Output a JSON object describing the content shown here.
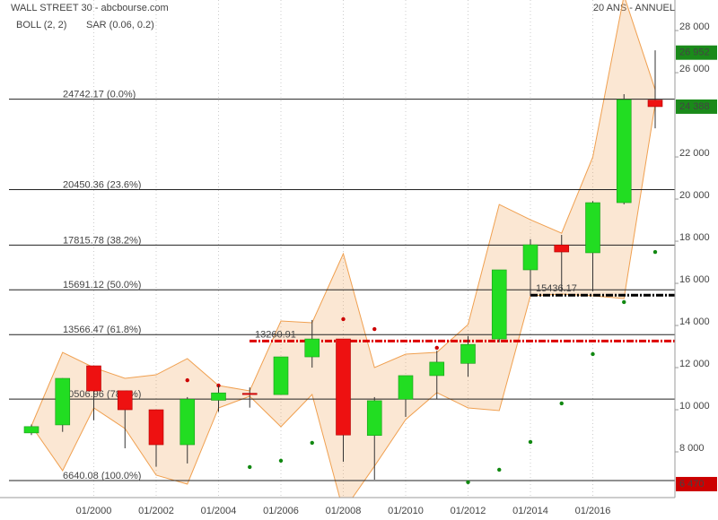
{
  "chart_data": {
    "type": "candlestick",
    "title": "WALL STREET 30 - abcbourse.com",
    "subtitle": "20 ANS - ANNUEL",
    "categories": [
      null,
      null,
      "01/2000",
      null,
      "01/2002",
      null,
      "01/2004",
      null,
      "01/2006",
      null,
      "01/2008",
      null,
      "01/2010",
      null,
      "01/2012",
      null,
      "01/2014",
      null,
      "01/2016",
      null,
      null
    ],
    "open": [
      8900,
      9280,
      12085,
      10900,
      10000,
      8340,
      10450,
      10780,
      10720,
      12510,
      13360,
      8780,
      10500,
      11620,
      12200,
      13360,
      16640,
      17820,
      17450,
      19830,
      24700
    ],
    "high": [
      9300,
      11500,
      12100,
      10900,
      10000,
      10600,
      11150,
      11060,
      12510,
      14260,
      13360,
      10600,
      11620,
      12800,
      13500,
      16640,
      18100,
      18300,
      19900,
      24980,
      27060
    ],
    "low": [
      8800,
      8950,
      9500,
      8170,
      7300,
      7450,
      9900,
      10100,
      10720,
      12000,
      7530,
      6680,
      9660,
      10510,
      11570,
      13200,
      15400,
      15600,
      15620,
      19750,
      23360
    ],
    "close": [
      9200,
      11490,
      10894,
      10000,
      8340,
      10500,
      10800,
      10720,
      12510,
      13360,
      8800,
      10430,
      11620,
      12260,
      13100,
      16640,
      17830,
      17490,
      19830,
      24720,
      24388
    ],
    "up_color": "#22dd22",
    "down_color": "#ee1111",
    "bollinger": {
      "name": "BOLL (2, 2)",
      "color": "#f0a050",
      "upper": [
        9235,
        12724,
        12001,
        11491,
        11660,
        12427,
        11150,
        10895,
        14214,
        14129,
        17405,
        12001,
        12639,
        12724,
        14044,
        19745,
        19022,
        18383,
        21999,
        29660,
        25192
      ],
      "lower": [
        9235,
        7108,
        10087,
        9108,
        6895,
        6470,
        10087,
        10640,
        9193,
        10725,
        5193,
        7321,
        9533,
        10810,
        10087,
        9958,
        15405,
        15490,
        15405,
        15278,
        24511
      ]
    },
    "sar": {
      "name": "SAR (0.06, 0.2)",
      "color": "#e00000",
      "values": [
        null,
        null,
        null,
        null,
        null,
        11400,
        11150,
        7280,
        7580,
        8430,
        14300,
        13830,
        null,
        12940,
        6560,
        7150,
        8470,
        10300,
        12640,
        15110,
        17490
      ],
      "colors": [
        null,
        null,
        null,
        null,
        null,
        "#cc0000",
        "#cc0000",
        "#118811",
        "#118811",
        "#118811",
        "#cc0000",
        "#cc0000",
        null,
        "#cc0000",
        "#118811",
        "#118811",
        "#118811",
        "#118811",
        "#118811",
        "#118811",
        "#118811"
      ]
    },
    "fibonacci": [
      {
        "value": 24742.17,
        "label": "24742.17  (0.0%)"
      },
      {
        "value": 20450.36,
        "label": "20450.36  (23.6%)"
      },
      {
        "value": 17815.78,
        "label": "17815.78  (38.2%)"
      },
      {
        "value": 15691.12,
        "label": "15691.12  (50.0%)"
      },
      {
        "value": 13566.47,
        "label": "13566.47  (61.8%)"
      },
      {
        "value": 10506.96,
        "label": "10506.96  (78.6%)"
      },
      {
        "value": 6640.08,
        "label": "6640.08  (100.0%)"
      }
    ],
    "levels": [
      {
        "value": 15436.17,
        "label": "15436.17",
        "color": "#000000"
      },
      {
        "value": 13260.91,
        "label": "13260.91",
        "color": "#dd0000"
      }
    ],
    "price_labels": [
      {
        "value": 26952,
        "label": "26 952",
        "color": "#1a8a1a"
      },
      {
        "value": 24388,
        "label": "24 388",
        "color": "#1a8a1a"
      },
      {
        "value": 6470,
        "label": "6 470",
        "color": "#cc0000"
      }
    ],
    "ylim": [
      5830,
      29450
    ],
    "yticks": [
      {
        "value": 28000,
        "label": "28 000"
      },
      {
        "value": 26000,
        "label": "26 000"
      },
      {
        "value": 22000,
        "label": "22 000"
      },
      {
        "value": 20000,
        "label": "20 000"
      },
      {
        "value": 18000,
        "label": "18 000"
      },
      {
        "value": 16000,
        "label": "16 000"
      },
      {
        "value": 14000,
        "label": "14 000"
      },
      {
        "value": 12000,
        "label": "12 000"
      },
      {
        "value": 10000,
        "label": "10 000"
      },
      {
        "value": 8000,
        "label": "8 000"
      }
    ],
    "grid": true
  }
}
